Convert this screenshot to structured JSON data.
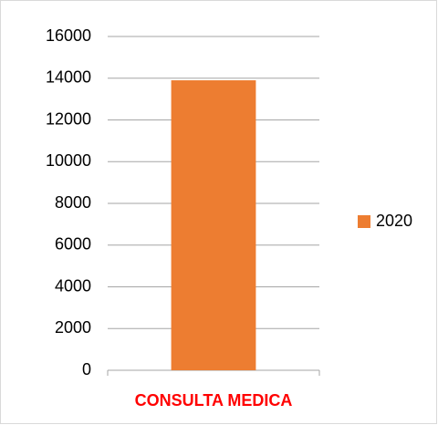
{
  "chart_data": {
    "type": "bar",
    "categories": [
      "CONSULTA MEDICA"
    ],
    "series": [
      {
        "name": "2020",
        "color": "#ed7d31",
        "values": [
          13900
        ]
      }
    ],
    "ylim": [
      0,
      16000
    ],
    "yticks": [
      0,
      2000,
      4000,
      6000,
      8000,
      10000,
      12000,
      14000,
      16000
    ],
    "grid": true,
    "legend": "right"
  }
}
